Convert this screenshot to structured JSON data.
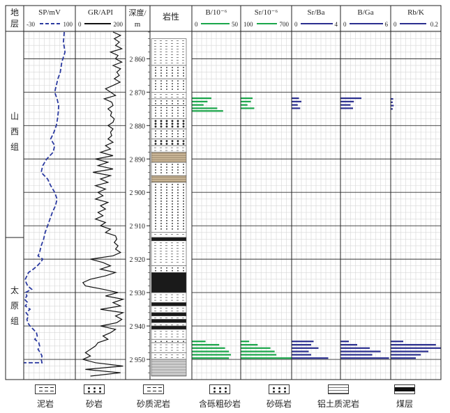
{
  "columns": {
    "strata": "地\n层",
    "sp": {
      "name": "SP/mV",
      "min": "-30",
      "max": "100"
    },
    "gr": {
      "name": "GR/API",
      "min": "0",
      "max": "200"
    },
    "depth": "深度/\nm",
    "lith": "岩性",
    "b": {
      "name": "B/10⁻⁶",
      "min": "0",
      "max": "50"
    },
    "sr": {
      "name": "Sr/10⁻⁶",
      "min": "100",
      "max": "700"
    },
    "srba": {
      "name": "Sr/Ba",
      "min": "0",
      "max": "4"
    },
    "bga": {
      "name": "B/Ga",
      "min": "0",
      "max": "6"
    },
    "rbk": {
      "name": "Rb/K",
      "min": "0",
      "max": "0.2"
    }
  },
  "formations": [
    {
      "name": "山西组",
      "chars": [
        "山",
        "西",
        "组"
      ],
      "from": 2852,
      "to": 2913.5
    },
    {
      "name": "太原组",
      "chars": [
        "太",
        "原",
        "组"
      ],
      "from": 2913.5,
      "to": 2955
    }
  ],
  "colors": {
    "sp": "#2b3aa0",
    "gr": "#111111",
    "b": "#1aa64a",
    "sr": "#1aa64a",
    "ratio": "#2b2f8f",
    "coal": "#1a1a1a",
    "tan": "#c9b596"
  },
  "chart_data": {
    "type": "line",
    "depth_range": [
      2852,
      2955
    ],
    "depth_ticks": [
      2860,
      2870,
      2880,
      2890,
      2900,
      2910,
      2920,
      2930,
      2940,
      2950
    ],
    "depth_tick_labels": [
      "2 860",
      "2 870",
      "2 880",
      "2 890",
      "2 900",
      "2 910",
      "2 920",
      "2 930",
      "2 940",
      "2 950"
    ],
    "sp": {
      "xlim": [
        -30,
        100
      ],
      "points": [
        [
          2852,
          72
        ],
        [
          2855,
          70
        ],
        [
          2858,
          74
        ],
        [
          2861,
          66
        ],
        [
          2864,
          62
        ],
        [
          2866,
          56
        ],
        [
          2868,
          52
        ],
        [
          2870,
          48
        ],
        [
          2872,
          54
        ],
        [
          2874,
          58
        ],
        [
          2876,
          57
        ],
        [
          2878,
          55
        ],
        [
          2880,
          52
        ],
        [
          2882,
          46
        ],
        [
          2884,
          38
        ],
        [
          2886,
          48
        ],
        [
          2888,
          44
        ],
        [
          2890,
          28
        ],
        [
          2892,
          18
        ],
        [
          2894,
          14
        ],
        [
          2895,
          22
        ],
        [
          2896,
          30
        ],
        [
          2898,
          38
        ],
        [
          2900,
          48
        ],
        [
          2902,
          54
        ],
        [
          2904,
          50
        ],
        [
          2906,
          42
        ],
        [
          2908,
          36
        ],
        [
          2910,
          30
        ],
        [
          2912,
          24
        ],
        [
          2914,
          20
        ],
        [
          2916,
          14
        ],
        [
          2918,
          10
        ],
        [
          2919,
          6
        ],
        [
          2920,
          18
        ],
        [
          2921,
          12
        ],
        [
          2922,
          4
        ],
        [
          2923,
          -6
        ],
        [
          2924,
          -18
        ],
        [
          2925,
          -22
        ],
        [
          2926,
          -26
        ],
        [
          2927,
          -24
        ],
        [
          2928,
          -20
        ],
        [
          2929,
          -10
        ],
        [
          2930,
          -26
        ],
        [
          2931,
          -22
        ],
        [
          2932,
          -28
        ],
        [
          2933,
          -20
        ],
        [
          2934,
          -26
        ],
        [
          2935,
          -14
        ],
        [
          2936,
          -24
        ],
        [
          2937,
          -18
        ],
        [
          2938,
          -22
        ],
        [
          2939,
          -20
        ],
        [
          2940,
          -14
        ],
        [
          2941,
          -6
        ],
        [
          2942,
          2
        ],
        [
          2943,
          4
        ],
        [
          2944,
          -2
        ],
        [
          2945,
          8
        ],
        [
          2946,
          10
        ],
        [
          2947,
          6
        ],
        [
          2948,
          12
        ],
        [
          2949,
          16
        ],
        [
          2950,
          14
        ],
        [
          2951,
          16
        ],
        [
          2951,
          -30
        ]
      ]
    },
    "gr": {
      "xlim": [
        0,
        200
      ],
      "points": [
        [
          2852,
          150
        ],
        [
          2853,
          180
        ],
        [
          2854,
          155
        ],
        [
          2855,
          175
        ],
        [
          2856,
          160
        ],
        [
          2857,
          185
        ],
        [
          2858,
          140
        ],
        [
          2859,
          170
        ],
        [
          2860,
          160
        ],
        [
          2861,
          185
        ],
        [
          2862,
          150
        ],
        [
          2863,
          180
        ],
        [
          2864,
          165
        ],
        [
          2865,
          175
        ],
        [
          2866,
          155
        ],
        [
          2867,
          178
        ],
        [
          2868,
          150
        ],
        [
          2869,
          120
        ],
        [
          2870,
          140
        ],
        [
          2871,
          160
        ],
        [
          2872,
          115
        ],
        [
          2873,
          145
        ],
        [
          2874,
          150
        ],
        [
          2875,
          130
        ],
        [
          2876,
          145
        ],
        [
          2877,
          140
        ],
        [
          2878,
          155
        ],
        [
          2879,
          150
        ],
        [
          2880,
          130
        ],
        [
          2881,
          150
        ],
        [
          2882,
          140
        ],
        [
          2883,
          145
        ],
        [
          2884,
          130
        ],
        [
          2885,
          150
        ],
        [
          2886,
          120
        ],
        [
          2887,
          140
        ],
        [
          2888,
          100
        ],
        [
          2889,
          150
        ],
        [
          2890,
          80
        ],
        [
          2891,
          130
        ],
        [
          2892,
          90
        ],
        [
          2893,
          150
        ],
        [
          2894,
          70
        ],
        [
          2895,
          140
        ],
        [
          2896,
          100
        ],
        [
          2897,
          130
        ],
        [
          2898,
          80
        ],
        [
          2899,
          120
        ],
        [
          2900,
          90
        ],
        [
          2901,
          110
        ],
        [
          2902,
          80
        ],
        [
          2903,
          130
        ],
        [
          2904,
          100
        ],
        [
          2905,
          120
        ],
        [
          2906,
          90
        ],
        [
          2907,
          110
        ],
        [
          2908,
          80
        ],
        [
          2909,
          120
        ],
        [
          2910,
          100
        ],
        [
          2911,
          140
        ],
        [
          2912,
          120
        ],
        [
          2913,
          160
        ],
        [
          2914,
          165
        ],
        [
          2915,
          155
        ],
        [
          2916,
          170
        ],
        [
          2917,
          160
        ],
        [
          2918,
          180
        ],
        [
          2919,
          150
        ],
        [
          2920,
          60
        ],
        [
          2921,
          110
        ],
        [
          2922,
          140
        ],
        [
          2923,
          100
        ],
        [
          2924,
          160
        ],
        [
          2925,
          120
        ],
        [
          2926,
          60
        ],
        [
          2927,
          30
        ],
        [
          2928,
          40
        ],
        [
          2929,
          110
        ],
        [
          2930,
          170
        ],
        [
          2931,
          120
        ],
        [
          2932,
          190
        ],
        [
          2933,
          150
        ],
        [
          2934,
          180
        ],
        [
          2935,
          100
        ],
        [
          2936,
          190
        ],
        [
          2937,
          160
        ],
        [
          2938,
          185
        ],
        [
          2939,
          165
        ],
        [
          2940,
          100
        ],
        [
          2941,
          160
        ],
        [
          2942,
          140
        ],
        [
          2943,
          110
        ],
        [
          2944,
          130
        ],
        [
          2945,
          90
        ],
        [
          2946,
          80
        ],
        [
          2947,
          60
        ],
        [
          2948,
          40
        ],
        [
          2949,
          60
        ],
        [
          2950,
          30
        ],
        [
          2951,
          80
        ],
        [
          2952,
          190
        ],
        [
          2953,
          40
        ],
        [
          2954,
          180
        ],
        [
          2955,
          60
        ]
      ]
    },
    "b": {
      "xlim": [
        0,
        50
      ],
      "samples": [
        [
          2871.8,
          20
        ],
        [
          2872.8,
          16
        ],
        [
          2873.8,
          12
        ],
        [
          2874.8,
          26
        ],
        [
          2875.6,
          32
        ],
        [
          2944.6,
          14
        ],
        [
          2945.6,
          28
        ],
        [
          2946.6,
          34
        ],
        [
          2947.6,
          38
        ],
        [
          2948.6,
          40
        ],
        [
          2949.6,
          38
        ]
      ]
    },
    "sr": {
      "xlim": [
        100,
        700
      ],
      "samples": [
        [
          2871.8,
          240
        ],
        [
          2872.8,
          220
        ],
        [
          2873.8,
          180
        ],
        [
          2874.8,
          260
        ],
        [
          2944.6,
          200
        ],
        [
          2945.6,
          300
        ],
        [
          2946.6,
          450
        ],
        [
          2947.6,
          500
        ],
        [
          2948.6,
          520
        ],
        [
          2949.6,
          700
        ]
      ]
    },
    "srba": {
      "xlim": [
        0,
        4
      ],
      "samples": [
        [
          2871.8,
          0.6
        ],
        [
          2872.8,
          0.8
        ],
        [
          2873.8,
          0.5
        ],
        [
          2874.8,
          0.7
        ],
        [
          2944.6,
          1.8
        ],
        [
          2945.6,
          1.6
        ],
        [
          2946.6,
          2.2
        ],
        [
          2947.6,
          1.4
        ],
        [
          2948.6,
          1.6
        ],
        [
          2949.6,
          3.0
        ]
      ]
    },
    "bga": {
      "xlim": [
        0,
        6
      ],
      "samples": [
        [
          2871.8,
          2.5
        ],
        [
          2872.8,
          1.6
        ],
        [
          2873.8,
          1.2
        ],
        [
          2874.8,
          1.5
        ],
        [
          2944.6,
          1.0
        ],
        [
          2945.6,
          2.0
        ],
        [
          2946.6,
          3.5
        ],
        [
          2947.6,
          4.8
        ],
        [
          2948.6,
          3.8
        ],
        [
          2949.6,
          5.8
        ]
      ]
    },
    "rbk": {
      "xlim": [
        0,
        0.2
      ],
      "samples": [
        [
          2872.0,
          0.01
        ],
        [
          2873.0,
          0.008
        ],
        [
          2874.0,
          0.012
        ],
        [
          2875.0,
          0.008
        ],
        [
          2944.6,
          0.05
        ],
        [
          2945.6,
          0.18
        ],
        [
          2946.6,
          0.2
        ],
        [
          2947.6,
          0.15
        ],
        [
          2948.6,
          0.12
        ],
        [
          2949.6,
          0.1
        ]
      ]
    },
    "lithology": [
      {
        "from": 2854,
        "to": 2862,
        "type": "泥岩"
      },
      {
        "from": 2862,
        "to": 2866,
        "type": "砂砾岩"
      },
      {
        "from": 2866,
        "to": 2870,
        "type": "砂岩"
      },
      {
        "from": 2870,
        "to": 2872,
        "type": "泥岩"
      },
      {
        "from": 2872,
        "to": 2874,
        "type": "砂砾岩"
      },
      {
        "from": 2874,
        "to": 2878,
        "type": "砂岩"
      },
      {
        "from": 2878,
        "to": 2881,
        "type": "含砾粗砂岩"
      },
      {
        "from": 2881,
        "to": 2884,
        "type": "砂岩"
      },
      {
        "from": 2884,
        "to": 2886,
        "type": "含砾粗砂岩"
      },
      {
        "from": 2886,
        "to": 2888,
        "type": "泥岩"
      },
      {
        "from": 2888,
        "to": 2891,
        "type": "tan"
      },
      {
        "from": 2891,
        "to": 2895,
        "type": "砂岩"
      },
      {
        "from": 2895,
        "to": 2897,
        "type": "tan"
      },
      {
        "from": 2897,
        "to": 2912,
        "type": "砂岩"
      },
      {
        "from": 2912,
        "to": 2913.5,
        "type": "泥岩"
      },
      {
        "from": 2913.5,
        "to": 2914.5,
        "type": "煤层"
      },
      {
        "from": 2914.5,
        "to": 2922,
        "type": "泥岩"
      },
      {
        "from": 2922,
        "to": 2924,
        "type": "砂岩"
      },
      {
        "from": 2924,
        "to": 2930,
        "type": "煤层"
      },
      {
        "from": 2930,
        "to": 2933,
        "type": "砂质泥岩"
      },
      {
        "from": 2933,
        "to": 2934,
        "type": "煤层"
      },
      {
        "from": 2934,
        "to": 2936,
        "type": "泥岩"
      },
      {
        "from": 2936,
        "to": 2937,
        "type": "煤层"
      },
      {
        "from": 2937,
        "to": 2938,
        "type": "泥岩"
      },
      {
        "from": 2938,
        "to": 2939,
        "type": "煤层"
      },
      {
        "from": 2939,
        "to": 2940,
        "type": "泥岩"
      },
      {
        "from": 2940,
        "to": 2941,
        "type": "煤层"
      },
      {
        "from": 2941,
        "to": 2944,
        "type": "砂质泥岩"
      },
      {
        "from": 2944,
        "to": 2945,
        "type": "砂砾岩"
      },
      {
        "from": 2945,
        "to": 2948,
        "type": "砂质泥岩"
      },
      {
        "from": 2948,
        "to": 2950,
        "type": "泥岩"
      },
      {
        "from": 2950,
        "to": 2955,
        "type": "铝土质泥岩"
      }
    ]
  },
  "legend": [
    {
      "key": "mudstone",
      "label": "泥岩"
    },
    {
      "key": "sandstone",
      "label": "砂岩"
    },
    {
      "key": "sandy-mudstone",
      "label": "砂质泥岩"
    },
    {
      "key": "gravel-coarse-sandstone",
      "label": "含砾粗砂岩"
    },
    {
      "key": "glutenite",
      "label": "砂砾岩"
    },
    {
      "key": "bauxitic-mudstone",
      "label": "铝土质泥岩"
    },
    {
      "key": "coal",
      "label": "煤层"
    }
  ]
}
